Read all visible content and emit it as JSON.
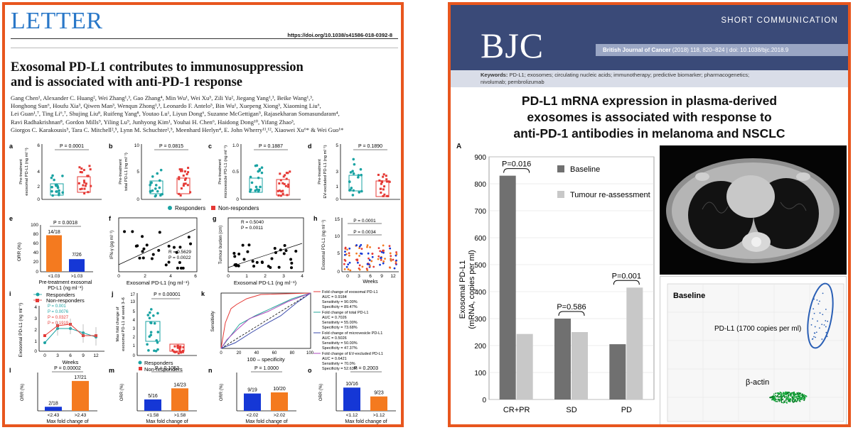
{
  "left": {
    "header": "LETTER",
    "doi": "https://doi.org/10.1038/s41586-018-0392-8",
    "title_line1": "Exosomal PD-L1 contributes to immunosuppression",
    "title_line2": "and is associated with anti-PD-1 response",
    "authors": [
      "Gang Chen¹, Alexander C. Huang², Wei Zhang¹,³, Gao Zhang⁴, Min Wu¹, Wei Xu⁵, Zili Yu², Jiegang Yang¹,³, Beike Wang¹,³,",
      "Honghong Sun⁶, Houfu Xia³, Qiwen Man³, Wenqun Zhong¹,³, Leonardo F. Antelo⁵, Bin Wu¹, Xuepeng Xiong³, Xiaoming Liu⁶,",
      "Lei Guan¹,⁷, Ting Li⁶,⁷, Shujing Liu⁸, Ruifeng Yang⁸, Youtao Lu¹, Liyun Dong⁶, Suzanne McGettigan⁵, Rajasekharan Somasundaram⁴,",
      "Ravi Radhakrishnan⁸, Gordon Mills⁹, Yiling Lu⁹, Junhyong Kim¹, Youhai H. Chen⁶, Haidong Dong¹⁰, Yifang Zhao³,",
      "Giorgos C. Karakousis⁵, Tara C. Mitchell²,⁵, Lynn M. Schuchter²,⁵, Meenhard Herlyn⁴, E. John Wherry¹¹,¹², Xiaowei Xu⁶* & Wei Guo¹*"
    ],
    "panels": {
      "a": {
        "letter": "a",
        "p": "P = 0.0001",
        "ylabel1": "Pre-treatment",
        "ylabel2": "exosomal PD-L1 (ng ml⁻¹)",
        "ymax": "6",
        "ymid": "4",
        "ylow": "2",
        "yzero": "0"
      },
      "b": {
        "letter": "b",
        "p": "P = 0.0815",
        "ylabel1": "Pre-treatment",
        "ylabel2": "total PD-L1 (ng ml⁻¹)",
        "ymax": "10",
        "ymid": "5",
        "yzero": "0"
      },
      "c": {
        "letter": "c",
        "p": "P = 0.1887",
        "ylabel1": "Pre-treatment",
        "ylabel2": "microvesicle PD-L1 (ng ml⁻¹)",
        "ymax": "1.0",
        "ymid": "0.5",
        "yzero": "0"
      },
      "d": {
        "letter": "d",
        "p": "P = 0.1890",
        "ylabel1": "Pre-treatment",
        "ylabel2": "EV-excluded PD-L1 (ng ml⁻¹)",
        "ymax": "5",
        "ymid": "3",
        "ylow": "1",
        "yzero": "0"
      },
      "legend_row1": {
        "responders": "Responders",
        "nonresponders": "Non-responders"
      },
      "e": {
        "letter": "e",
        "p": "P = 0.0018",
        "ylabel": "ORR (%)",
        "bar1_label": "14/18",
        "bar2_label": "7/26",
        "bar1_value": 78,
        "bar2_value": 27,
        "cat1": "<1.03",
        "cat2": ">1.03",
        "xlabel1": "Pre-treatment exosomal",
        "xlabel2": "PD-L1 (ng ml⁻¹)",
        "y100": "100",
        "y80": "80",
        "y60": "60",
        "y40": "40",
        "y20": "20",
        "y0": "0"
      },
      "f": {
        "letter": "f",
        "r": "R = 0.5629",
        "p": "P = 0.0022",
        "ylabel": "IFN-γ (pg ml⁻¹)",
        "xlabel": "Exosomal PD-L1 (ng ml⁻¹)",
        "x0": "0",
        "x2": "2",
        "x4": "4",
        "x6": "6"
      },
      "g": {
        "letter": "g",
        "r": "R = 0.5040",
        "p": "P = 0.0011",
        "ylabel": "Tumour burden (cm)",
        "xlabel": "Exosomal PD-L1 (ng ml⁻¹)",
        "x0": "0",
        "x1": "1",
        "x2": "2",
        "x3": "3",
        "x4": "4"
      },
      "h": {
        "letter": "h",
        "p1": "P = 0.0001",
        "p2": "P = 0.0034",
        "ylabel": "Exosomal PD-L1 (ng ml⁻¹)",
        "xlabel": "Weeks",
        "ticks": [
          "0",
          "3",
          "6",
          "9",
          "12"
        ],
        "y15": "15",
        "y10": "10",
        "y5": "5",
        "y0": "0"
      },
      "i": {
        "letter": "i",
        "legend1": "Responders",
        "legend2": "Non-responders",
        "p1": "P = 0.001",
        "p2": "P = 0.0076",
        "p3": "P = 0.0327",
        "p4": "P = 0.1919",
        "ylabel": "Exosomal PD-L1 (ng ml⁻¹)",
        "xlabel": "Weeks",
        "ticks": [
          "0",
          "3",
          "6",
          "9",
          "12"
        ],
        "y4": "4",
        "y3": "3",
        "y2": "2",
        "y1": "1",
        "y0": "0"
      },
      "j": {
        "letter": "j",
        "p": "P = 0.00001",
        "ylabel1": "Max fold change of",
        "ylabel2": "exosomal PD-L1 at week 3–6",
        "legend1": "Responders",
        "legend2": "Non-responders",
        "y17": "17",
        "y13": "13",
        "y5": "5",
        "y4": "4",
        "y3": "3",
        "y2": "2",
        "y1": "1",
        "y0": "0"
      },
      "k": {
        "letter": "k",
        "ylabel": "Sensitivity",
        "xlabel": "100 – specificity",
        "ticks": [
          "0",
          "20",
          "40",
          "60",
          "80",
          "100"
        ],
        "legend": [
          {
            "title": "Fold change of exosomal PD-L1",
            "auc": "AUC = 0.9184",
            "sens": "Sensitivity = 90.00%",
            "spec": "Specificity = 89.47%",
            "color": "#e53935"
          },
          {
            "title": "Fold change of total PD-L1",
            "auc": "AUC = 0.7026",
            "sens": "Sensitivity = 55.00%",
            "spec": "Specificity = 73.68%",
            "color": "#26a69a"
          },
          {
            "title": "Fold change of microvesicle PD-L1",
            "auc": "AUC = 0.5026",
            "sens": "Sensitivity = 50.00%",
            "spec": "Specificity = 47.37%",
            "color": "#3949ab"
          },
          {
            "title": "Fold change of EV-excluded PD-L1",
            "auc": "AUC = 0.6421",
            "sens": "Sensitivity = 70.0%",
            "spec": "Specificity = 52.63%",
            "color": "#ab47bc"
          }
        ]
      },
      "l": {
        "letter": "l",
        "p": "P = 0.00002",
        "bar1_label": "2/18",
        "bar2_label": "17/21",
        "bar1_value": 11,
        "bar2_value": 81,
        "cat1": "<2.43",
        "cat2": ">2.43",
        "xlabel1": "Max fold change of",
        "xlabel2": "exosomal PD-L1",
        "ylabel": "ORR (%)"
      },
      "m": {
        "letter": "m",
        "p": "P = 0.1053",
        "bar1_label": "5/16",
        "bar2_label": "14/23",
        "bar1_value": 31,
        "bar2_value": 61,
        "cat1": "<1.58",
        "cat2": ">1.58",
        "xlabel1": "Max fold change of",
        "xlabel2": "total PD-L1",
        "ylabel": "ORR (%)"
      },
      "n": {
        "letter": "n",
        "p": "P = 1.0000",
        "bar1_label": "9/19",
        "bar2_label": "10/20",
        "bar1_value": 47,
        "bar2_value": 50,
        "cat1": "<2.02",
        "cat2": ">2.02",
        "xlabel1": "Max fold change of",
        "xlabel2": "microvesicle PD-L1",
        "ylabel": "ORR (%)"
      },
      "o": {
        "letter": "o",
        "p": "P = 0.2003",
        "bar1_label": "10/16",
        "bar2_label": "9/23",
        "bar1_value": 63,
        "bar2_value": 39,
        "cat1": "<1.12",
        "cat2": ">1.12",
        "xlabel1": "Max fold change of",
        "xlabel2": "EV-excluded PD-L1",
        "ylabel": "ORR (%)"
      }
    },
    "colors": {
      "orange": "#f47a1f",
      "blue": "#1537d6",
      "teal": "#1aa3a3",
      "red": "#e53935"
    }
  },
  "right": {
    "journal": "BJC",
    "section": "SHORT COMMUNICATION",
    "citation_bold": "British Journal of Cancer",
    "citation_rest": " (2018) 118, 820–824 | doi: 10.1038/bjc.2018.9",
    "keywords_label": "Keywords:",
    "keywords_line1": "PD-L1; exosomes; circulating nucleic acids; immunotherapy; predictive biomarker; pharmacogenetics;",
    "keywords_line2": "nivolumab; pembrolizumab",
    "title_line1": "PD-L1 mRNA expression in plasma-derived",
    "title_line2": "exosomes is associated with response to",
    "title_line3": "anti-PD-1 antibodies in melanoma and NSCLC",
    "panel_letter": "A",
    "ddpcr_baseline": "Baseline",
    "ddpcr_pdl1": "PD-L1 (1700 copies per ml)",
    "ddpcr_actin": "β-actin"
  },
  "chart_data": {
    "type": "bar",
    "categories": [
      "CR+PR",
      "SD",
      "PD"
    ],
    "series": [
      {
        "name": "Baseline",
        "values": [
          830,
          300,
          205
        ]
      },
      {
        "name": "Tumour re-assessment",
        "values": [
          243,
          250,
          415
        ]
      }
    ],
    "ylabel": "Exosomal PD-L1\n(mRNA, copies per ml)",
    "ylim": [
      0,
      900
    ],
    "yticks": [
      0,
      100,
      200,
      300,
      400,
      500,
      600,
      700,
      800,
      900
    ],
    "annotations": [
      {
        "category": "CR+PR",
        "text": "P=0.016"
      },
      {
        "category": "SD",
        "text": "P=0.586"
      },
      {
        "category": "PD",
        "text": "P=0.001"
      }
    ],
    "colors": {
      "Baseline": "#707070",
      "Tumour re-assessment": "#c8c8c8"
    },
    "grid": true,
    "legend": "top-right"
  }
}
